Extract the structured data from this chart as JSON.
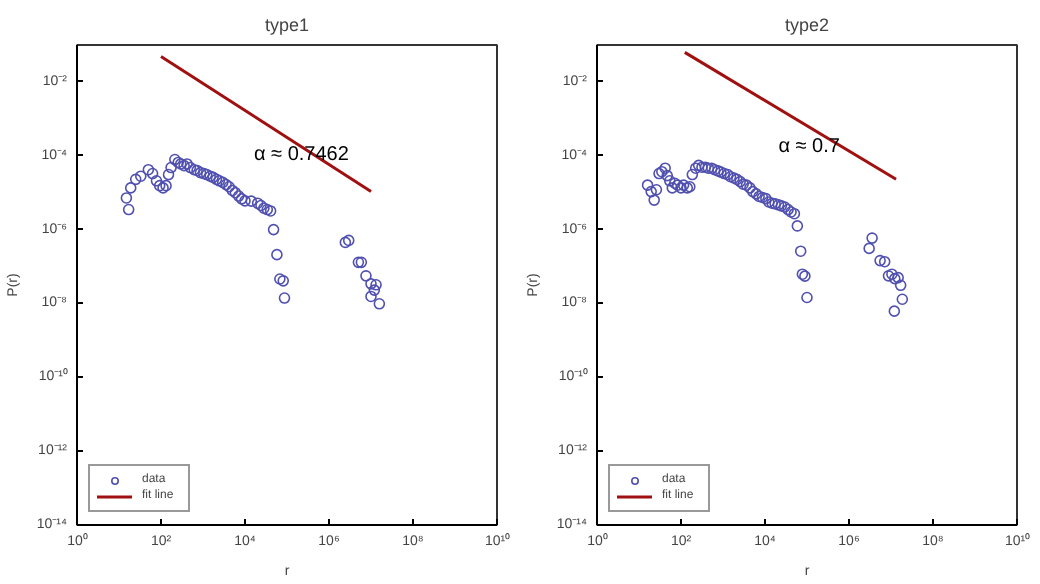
{
  "chart_data": [
    {
      "type": "scatter",
      "title": "type1",
      "xlabel": "r",
      "ylabel": "P(r)",
      "log": "xy",
      "grid": false,
      "legend": "bottom left",
      "xlim": [
        1,
        10000000000
      ],
      "ylim": [
        1e-14,
        0.1
      ],
      "xticks": [
        {
          "value": 1,
          "label": "10⁰"
        },
        {
          "value": 100,
          "label": "10²"
        },
        {
          "value": 10000,
          "label": "10⁴"
        },
        {
          "value": 1000000,
          "label": "10⁶"
        },
        {
          "value": 100000000,
          "label": "10⁸"
        },
        {
          "value": 10000000000,
          "label": "10¹⁰"
        }
      ],
      "yticks": [
        {
          "value": 0.01,
          "label": "10⁻²"
        },
        {
          "value": 0.0001,
          "label": "10⁻⁴"
        },
        {
          "value": 1e-06,
          "label": "10⁻⁶"
        },
        {
          "value": 1e-08,
          "label": "10⁻⁸"
        },
        {
          "value": 1e-10,
          "label": "10⁻¹⁰"
        },
        {
          "value": 1e-12,
          "label": "10⁻¹²"
        },
        {
          "value": 1e-14,
          "label": "10⁻¹⁴"
        }
      ],
      "annotations": [
        "α ≈ 0.7462"
      ],
      "series": [
        {
          "name": "data",
          "marker": "circle",
          "color": "#5050b0",
          "x": [
            15,
            17,
            19,
            25,
            33,
            50,
            63,
            78,
            93,
            112,
            132,
            151,
            174,
            214,
            257,
            295,
            355,
            417,
            501,
            617,
            724,
            871,
            1050,
            1230,
            1480,
            1740,
            2090,
            2450,
            2950,
            3550,
            4170,
            5010,
            5890,
            7080,
            8320,
            10000,
            14100,
            20000,
            24000,
            28200,
            33900,
            40700,
            47900,
            57500,
            67600,
            81300,
            87100,
            2450000,
            2950000,
            5010000,
            5890000,
            7590000,
            10000000,
            12000000,
            13200000,
            10000000,
            15800000
          ],
          "values": [
            7.2e-06,
            3.5e-06,
            1.35e-05,
            2.3e-05,
            2.8e-05,
            4.2e-05,
            3.3e-05,
            2.1e-05,
            1.55e-05,
            1.35e-05,
            1.55e-05,
            3.1e-05,
            4.8e-05,
            7.9e-05,
            6.6e-05,
            6e-05,
            5.4e-05,
            6e-05,
            4.8e-05,
            4.2e-05,
            4e-05,
            3.5e-05,
            3.3e-05,
            3.1e-05,
            2.8e-05,
            2.6e-05,
            2.3e-05,
            2.1e-05,
            1.9e-05,
            1.66e-05,
            1.45e-05,
            1.15e-05,
            1e-05,
            8.1e-06,
            6.8e-06,
            6e-06,
            5.9e-06,
            5.2e-06,
            4.5e-06,
            3.8e-06,
            3.5e-06,
            3.2e-06,
            1e-06,
            2.1e-07,
            4.6e-08,
            4.1e-08,
            1.4e-08,
            4.5e-07,
            5.1e-07,
            1.3e-07,
            1.3e-07,
            5.6e-08,
            3.4e-08,
            2.3e-08,
            3.2e-08,
            1.55e-08,
            9.8e-09
          ]
        },
        {
          "name": "fit line",
          "type": "line",
          "marker": "none",
          "line_style": "solid",
          "color": "#a01010",
          "x": [
            100,
            10000000
          ],
          "values": [
            0.049,
            1.07e-05
          ]
        }
      ]
    },
    {
      "type": "scatter",
      "title": "type2",
      "xlabel": "r",
      "ylabel": "P(r)",
      "log": "xy",
      "grid": false,
      "legend": "bottom left",
      "xlim": [
        1,
        10000000000
      ],
      "ylim": [
        1e-14,
        0.1
      ],
      "xticks": [
        {
          "value": 1,
          "label": "10⁰"
        },
        {
          "value": 100,
          "label": "10²"
        },
        {
          "value": 10000,
          "label": "10⁴"
        },
        {
          "value": 1000000,
          "label": "10⁶"
        },
        {
          "value": 100000000,
          "label": "10⁸"
        },
        {
          "value": 10000000000,
          "label": "10¹⁰"
        }
      ],
      "yticks": [
        {
          "value": 0.01,
          "label": "10⁻²"
        },
        {
          "value": 0.0001,
          "label": "10⁻⁴"
        },
        {
          "value": 1e-06,
          "label": "10⁻⁶"
        },
        {
          "value": 1e-08,
          "label": "10⁻⁸"
        },
        {
          "value": 1e-10,
          "label": "10⁻¹⁰"
        },
        {
          "value": 1e-12,
          "label": "10⁻¹²"
        },
        {
          "value": 1e-14,
          "label": "10⁻¹⁴"
        }
      ],
      "annotations": [
        "α ≈ 0.7"
      ],
      "series": [
        {
          "name": "data",
          "marker": "circle",
          "color": "#5050b0",
          "x": [
            16,
            19.5,
            23,
            26,
            30,
            35,
            42,
            47,
            54,
            62,
            71,
            83,
            100,
            115,
            141,
            162,
            186,
            224,
            263,
            316,
            380,
            447,
            537,
            631,
            759,
            891,
            1070,
            1290,
            1510,
            1820,
            2140,
            2570,
            3020,
            3630,
            4370,
            5130,
            6170,
            7240,
            8710,
            10500,
            12300,
            14800,
            17400,
            20900,
            24500,
            29500,
            35500,
            41700,
            50100,
            58900,
            70800,
            77600,
            89100,
            100000,
            3020000,
            3550000,
            5500000,
            7080000,
            8710000,
            10500000,
            12300000,
            14800000,
            17000000,
            12000000,
            18600000
          ],
          "values": [
            1.6e-05,
            1.07e-05,
            6.3e-06,
            1.2e-05,
            3.3e-05,
            3.7e-05,
            4.6e-05,
            2.9e-05,
            2.1e-05,
            1.35e-05,
            1.8e-05,
            1.6e-05,
            1.35e-05,
            1.6e-05,
            1.35e-05,
            1.45e-05,
            3.1e-05,
            4.6e-05,
            5.5e-05,
            4.9e-05,
            4.9e-05,
            4.6e-05,
            4.6e-05,
            4.2e-05,
            3.9e-05,
            3.6e-05,
            3.3e-05,
            3.1e-05,
            2.7e-05,
            2.5e-05,
            2.3e-05,
            2e-05,
            1.7e-05,
            1.6e-05,
            1.35e-05,
            1.07e-05,
            9.3e-06,
            7.9e-06,
            7.4e-06,
            6.9e-06,
            5.6e-06,
            5.2e-06,
            5e-06,
            4.7e-06,
            4.4e-06,
            4.1e-06,
            3.5e-06,
            3e-06,
            2.7e-06,
            1.26e-06,
            2.6e-07,
            6.2e-08,
            5.5e-08,
            1.45e-08,
            3.1e-07,
            5.9e-07,
            1.45e-07,
            1.35e-07,
            5.6e-08,
            6.2e-08,
            4.7e-08,
            5e-08,
            3.1e-08,
            6.2e-09,
            1.3e-08
          ]
        },
        {
          "name": "fit line",
          "type": "line",
          "marker": "none",
          "line_style": "solid",
          "color": "#a01010",
          "x": [
            123,
            13200000
          ],
          "values": [
            0.063,
            2.3e-05
          ]
        }
      ]
    }
  ]
}
